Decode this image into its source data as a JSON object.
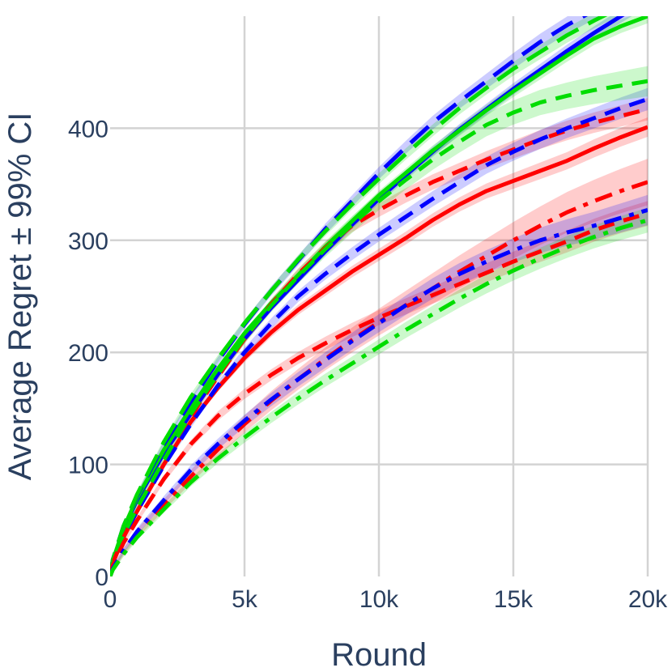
{
  "chart_data": {
    "type": "line",
    "title": "",
    "xlabel": "Round",
    "ylabel": "Average Regret ± 99% CI",
    "xlim": [
      0,
      20000
    ],
    "ylim": [
      0,
      500
    ],
    "grid": true,
    "legend": "none",
    "x_ticks": [
      {
        "value": 0,
        "label": "0"
      },
      {
        "value": 5000,
        "label": "5k"
      },
      {
        "value": 10000,
        "label": "10k"
      },
      {
        "value": 15000,
        "label": "15k"
      },
      {
        "value": 20000,
        "label": "20k"
      }
    ],
    "y_ticks": [
      {
        "value": 0,
        "label": "0"
      },
      {
        "value": 100,
        "label": "100"
      },
      {
        "value": 200,
        "label": "200"
      },
      {
        "value": 300,
        "label": "300"
      },
      {
        "value": 400,
        "label": "400"
      }
    ],
    "x": [
      0,
      100,
      500,
      1000,
      2000,
      3000,
      4000,
      5000,
      6000,
      7000,
      8000,
      9000,
      10000,
      11000,
      12000,
      13000,
      14000,
      15000,
      16000,
      17000,
      18000,
      19000,
      20000
    ],
    "series": [
      {
        "color": "#0000ff",
        "dash": "solid",
        "band": 4,
        "values": [
          0,
          14,
          42,
          68,
          110,
          145,
          180,
          212,
          240,
          265,
          290,
          314,
          337,
          358,
          379,
          399,
          417,
          435,
          452,
          469,
          485,
          500,
          515
        ]
      },
      {
        "color": "#00dd00",
        "dash": "solid",
        "band": 4,
        "values": [
          0,
          14,
          43,
          70,
          113,
          150,
          185,
          217,
          244,
          269,
          294,
          317,
          340,
          360,
          380,
          398,
          416,
          433,
          449,
          465,
          480,
          491,
          500
        ]
      },
      {
        "color": "#0000ff",
        "dash": "longdash",
        "band": 6,
        "values": [
          0,
          15,
          45,
          72,
          118,
          156,
          192,
          225,
          255,
          282,
          310,
          335,
          360,
          383,
          405,
          424,
          442,
          460,
          477,
          492,
          505,
          518,
          530
        ]
      },
      {
        "color": "#00dd00",
        "dash": "longdash",
        "band": 5,
        "values": [
          0,
          15,
          45,
          73,
          120,
          160,
          194,
          226,
          255,
          283,
          308,
          332,
          355,
          377,
          398,
          418,
          436,
          453,
          468,
          483,
          496,
          508,
          520
        ]
      },
      {
        "color": "#ff0000",
        "dash": "solid",
        "band": 6,
        "values": [
          0,
          12,
          35,
          58,
          100,
          138,
          168,
          195,
          218,
          238,
          255,
          272,
          287,
          302,
          318,
          332,
          344,
          353,
          362,
          371,
          382,
          392,
          401
        ]
      },
      {
        "color": "#ff0000",
        "dash": "dash",
        "band": 7,
        "values": [
          0,
          12,
          36,
          60,
          103,
          143,
          178,
          212,
          243,
          270,
          293,
          313,
          327,
          340,
          352,
          362,
          372,
          381,
          390,
          398,
          405,
          411,
          417
        ]
      },
      {
        "color": "#0000ff",
        "dash": "dash",
        "band": 7,
        "values": [
          0,
          12,
          36,
          58,
          99,
          136,
          170,
          200,
          226,
          250,
          270,
          288,
          305,
          321,
          337,
          352,
          367,
          379,
          390,
          400,
          409,
          418,
          426
        ]
      },
      {
        "color": "#00dd00",
        "dash": "dash",
        "band": 10,
        "values": [
          0,
          12,
          37,
          61,
          104,
          145,
          180,
          213,
          242,
          268,
          292,
          314,
          335,
          354,
          372,
          388,
          403,
          414,
          423,
          429,
          434,
          438,
          442
        ]
      },
      {
        "color": "#ff0000",
        "dash": "dash",
        "band": 8,
        "values": [
          0,
          10,
          30,
          50,
          87,
          118,
          143,
          163,
          180,
          195,
          208,
          220,
          231,
          241,
          251,
          261,
          271,
          281,
          290,
          299,
          309,
          317,
          324
        ]
      },
      {
        "color": "#ff0000",
        "dash": "dashdot",
        "band": 16,
        "values": [
          0,
          7,
          22,
          38,
          64,
          89,
          113,
          136,
          157,
          176,
          194,
          211,
          227,
          242,
          257,
          272,
          286,
          300,
          313,
          325,
          335,
          344,
          352
        ]
      },
      {
        "color": "#0000ff",
        "dash": "dashdot",
        "band": 10,
        "values": [
          0,
          7,
          23,
          40,
          68,
          95,
          118,
          139,
          158,
          176,
          193,
          210,
          226,
          242,
          257,
          270,
          281,
          291,
          300,
          307,
          313,
          320,
          327
        ]
      },
      {
        "color": "#00dd00",
        "dash": "dashdot",
        "band": 8,
        "values": [
          0,
          6,
          20,
          35,
          60,
          84,
          105,
          124,
          142,
          159,
          175,
          190,
          205,
          220,
          234,
          248,
          261,
          273,
          284,
          294,
          303,
          311,
          318
        ]
      }
    ]
  }
}
